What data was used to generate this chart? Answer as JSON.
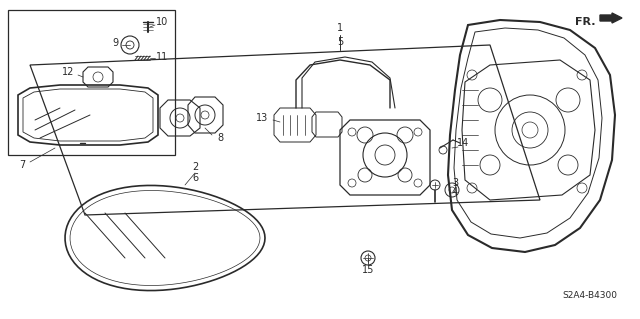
{
  "bg_color": "#ffffff",
  "line_color": "#2a2a2a",
  "text_color": "#2a2a2a",
  "fig_width": 6.4,
  "fig_height": 3.19,
  "dpi": 100,
  "diagram_code": "S2A4-B4300"
}
